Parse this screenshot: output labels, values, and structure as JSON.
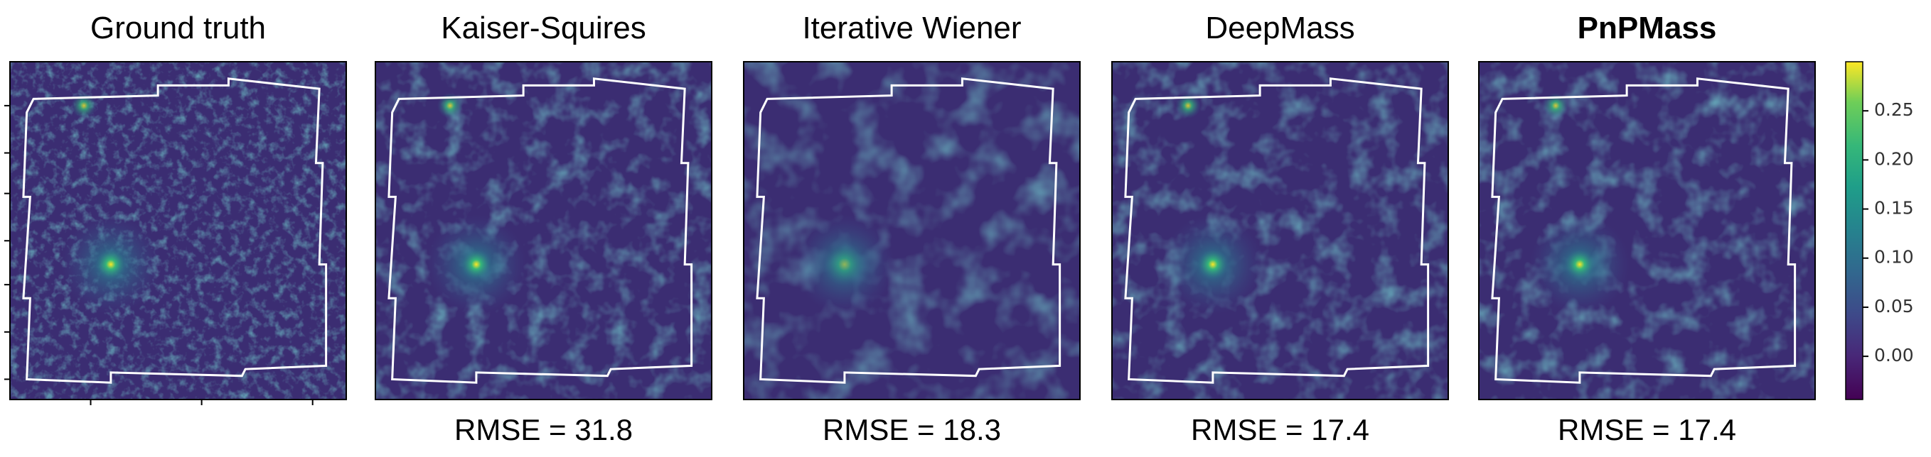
{
  "panels": [
    {
      "title": "Ground truth"
    },
    {
      "title": "Kaiser-Squires",
      "caption": "RMSE = 31.8"
    },
    {
      "title": "Iterative Wiener",
      "caption": "RMSE = 18.3"
    },
    {
      "title": "DeepMass",
      "caption": "RMSE = 17.4"
    },
    {
      "title": "PnPMass",
      "caption": "RMSE = 17.4",
      "bold": true
    }
  ],
  "colorbar": {
    "lim": [
      -0.044,
      0.3
    ],
    "ticks": [
      {
        "value": 0.0,
        "label": "0.00"
      },
      0.05,
      {
        "value": 0.1,
        "label": "0.10"
      },
      0.15,
      {
        "value": 0.2,
        "label": "0.20"
      },
      0.25
    ]
  }
}
